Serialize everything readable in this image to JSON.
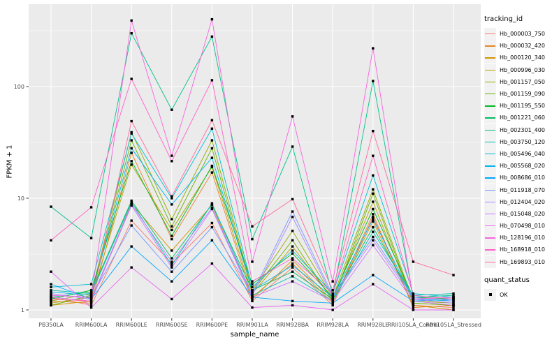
{
  "chart_data": {
    "type": "line",
    "title": "",
    "xlabel": "sample_name",
    "ylabel": "FPKM + 1",
    "y_scale": "log10",
    "y_ticks": [
      1,
      10,
      100
    ],
    "y_minor_ticks": [
      3.1623,
      31.623,
      316.23
    ],
    "ylim": [
      0.93,
      560
    ],
    "grid": true,
    "panel_bg": "#EBEBEB",
    "grid_color": "#FFFFFF",
    "tick_color": "#333333",
    "axis_text_color": "#4D4D4D",
    "point_marker": "black-square",
    "legend_position": "right",
    "categories": [
      "PB350LA",
      "RRIM600LA",
      "RRIM600LE",
      "RRIM600SE",
      "RRIM600PE",
      "RRIM901LA",
      "RRIM928BA",
      "RRIM928LA",
      "RRIM928LE",
      "RRII105LA_Control",
      "RRII105LA_Stressed"
    ],
    "color_legend_title": "tracking_id",
    "shape_legend_title": "quant_status",
    "shape_legend_items": [
      {
        "label": "OK",
        "marker": "black-square"
      }
    ],
    "series": [
      {
        "name": "Hb_000003_750",
        "color": "#F8766D",
        "values": [
          1.3,
          1.1,
          6.3,
          2.6,
          6.0,
          1.2,
          2.4,
          1.1,
          6.8,
          1.1,
          1.05
        ]
      },
      {
        "name": "Hb_000032_420",
        "color": "#E88526",
        "values": [
          1.2,
          1.15,
          25.5,
          4.3,
          17.0,
          1.3,
          2.6,
          1.15,
          7.2,
          1.05,
          1.1
        ]
      },
      {
        "name": "Hb_000120_340",
        "color": "#D39200",
        "values": [
          1.1,
          1.2,
          9.0,
          3.4,
          8.7,
          1.25,
          2.8,
          1.2,
          6.2,
          1.1,
          1.0
        ]
      },
      {
        "name": "Hb_000996_030",
        "color": "#B79F00",
        "values": [
          1.15,
          1.3,
          20.0,
          5.2,
          19.0,
          1.4,
          3.7,
          1.25,
          9.3,
          1.15,
          1.1
        ]
      },
      {
        "name": "Hb_001157_050",
        "color": "#93AA00",
        "values": [
          1.2,
          1.4,
          39.0,
          6.5,
          33.0,
          1.5,
          5.1,
          1.3,
          12.0,
          1.2,
          1.15
        ]
      },
      {
        "name": "Hb_001159_090",
        "color": "#64B200",
        "values": [
          1.1,
          1.35,
          33.0,
          5.6,
          28.0,
          1.45,
          4.2,
          1.2,
          11.0,
          1.15,
          1.1
        ]
      },
      {
        "name": "Hb_001195_550",
        "color": "#00B81F",
        "values": [
          1.25,
          1.5,
          21.5,
          4.6,
          19.5,
          1.7,
          3.2,
          1.3,
          8.0,
          1.3,
          1.25
        ]
      },
      {
        "name": "Hb_001221_060",
        "color": "#00BD5F",
        "values": [
          1.3,
          1.45,
          9.5,
          2.9,
          8.8,
          1.5,
          2.2,
          1.25,
          5.5,
          1.25,
          1.3
        ]
      },
      {
        "name": "Hb_002301_400",
        "color": "#00C08B",
        "values": [
          8.4,
          4.4,
          300,
          62.0,
          280,
          4.3,
          29.0,
          1.35,
          112,
          1.3,
          1.35
        ]
      },
      {
        "name": "Hb_003750_120",
        "color": "#00C0B2",
        "values": [
          1.5,
          1.4,
          9.2,
          2.5,
          9.0,
          1.35,
          2.0,
          1.2,
          5.0,
          1.35,
          1.4
        ]
      },
      {
        "name": "Hb_005496_040",
        "color": "#00BDD3",
        "values": [
          1.6,
          1.7,
          38.0,
          10.0,
          42.0,
          1.6,
          3.4,
          1.4,
          16.0,
          1.4,
          1.3
        ]
      },
      {
        "name": "Hb_005568_020",
        "color": "#00B5EC",
        "values": [
          1.45,
          1.35,
          28.0,
          8.8,
          23.0,
          1.5,
          2.5,
          1.3,
          6.5,
          1.25,
          1.2
        ]
      },
      {
        "name": "Hb_008686_010",
        "color": "#00A7FF",
        "values": [
          1.7,
          1.25,
          3.7,
          1.8,
          4.2,
          1.3,
          1.2,
          1.15,
          2.05,
          1.2,
          1.25
        ]
      },
      {
        "name": "Hb_011918_070",
        "color": "#7997FF",
        "values": [
          1.35,
          1.3,
          5.7,
          2.2,
          5.5,
          1.4,
          7.6,
          1.35,
          4.5,
          1.3,
          1.2
        ]
      },
      {
        "name": "Hb_012404_020",
        "color": "#AC88FF",
        "values": [
          1.4,
          1.25,
          8.8,
          2.7,
          8.2,
          1.35,
          6.8,
          1.3,
          4.2,
          1.25,
          1.15
        ]
      },
      {
        "name": "Hb_015048_020",
        "color": "#CF78FF",
        "values": [
          1.3,
          1.2,
          8.6,
          2.4,
          8.0,
          1.3,
          1.8,
          1.2,
          3.8,
          1.2,
          1.1
        ]
      },
      {
        "name": "Hb_070498_010",
        "color": "#E868F3",
        "values": [
          2.2,
          1.05,
          2.4,
          1.25,
          2.6,
          1.05,
          1.1,
          1.0,
          1.7,
          1.0,
          1.0
        ]
      },
      {
        "name": "Hb_128196_010",
        "color": "#F863DF",
        "values": [
          1.35,
          1.3,
          390,
          24.0,
          400,
          2.7,
          54.0,
          1.8,
          220,
          1.25,
          1.3
        ]
      },
      {
        "name": "Hb_168918_010",
        "color": "#FF61C7",
        "values": [
          4.2,
          8.3,
          117,
          21.5,
          114,
          1.8,
          2.9,
          1.4,
          24.0,
          1.35,
          1.25
        ]
      },
      {
        "name": "Hb_169893_010",
        "color": "#FF68A1",
        "values": [
          1.25,
          1.2,
          49.0,
          10.4,
          50.0,
          5.6,
          9.8,
          1.5,
          40.0,
          2.7,
          2.05
        ]
      }
    ]
  }
}
